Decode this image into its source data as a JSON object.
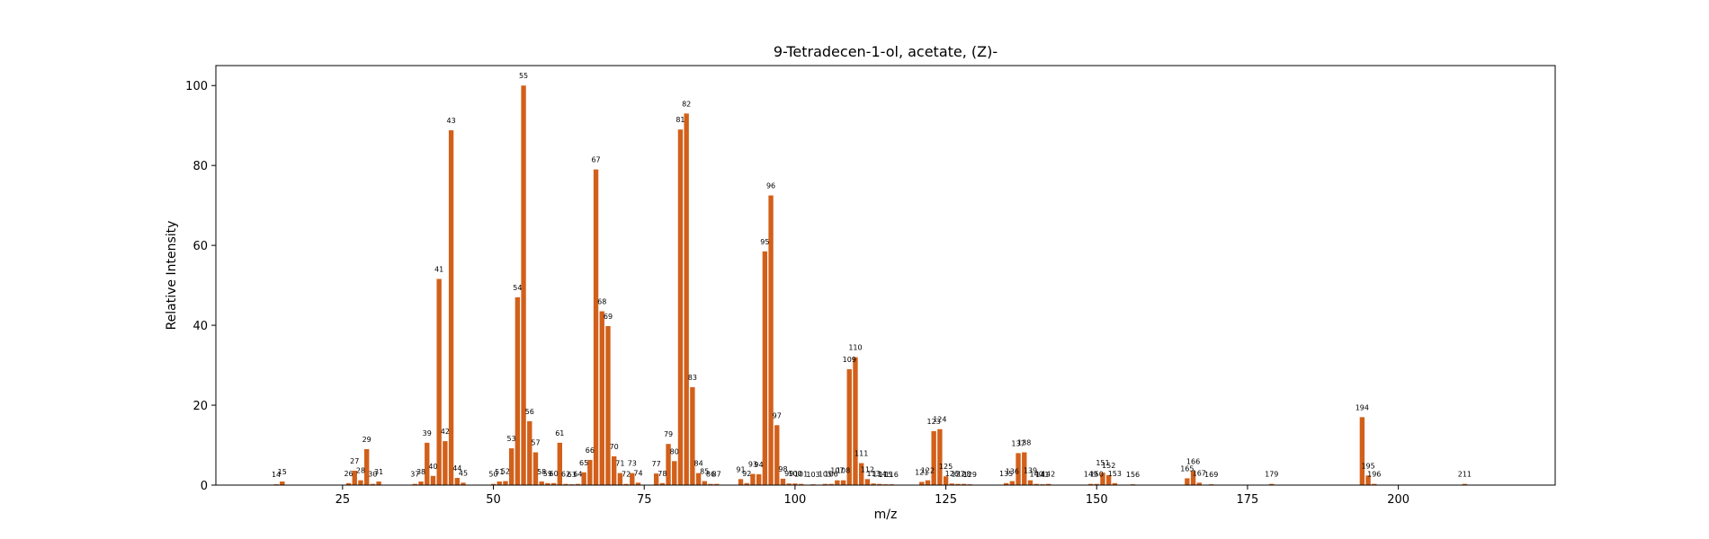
{
  "chart_data": {
    "type": "bar",
    "title": "9-Tetradecen-1-ol, acetate, (Z)-",
    "xlabel": "m/z",
    "ylabel": "Relative Intensity",
    "xlim": [
      4,
      226
    ],
    "ylim": [
      0,
      105
    ],
    "xticks": [
      25,
      50,
      75,
      100,
      125,
      150,
      175,
      200
    ],
    "yticks": [
      0,
      20,
      40,
      60,
      80,
      100
    ],
    "grid": false,
    "bar_color": "#d2601a",
    "series": [
      {
        "x": [
          14,
          15,
          26,
          27,
          28,
          29,
          30,
          31,
          37,
          38,
          39,
          40,
          41,
          42,
          43,
          44,
          45,
          50,
          51,
          52,
          53,
          54,
          55,
          56,
          57,
          58,
          59,
          60,
          61,
          62,
          63,
          64,
          65,
          66,
          67,
          68,
          69,
          70,
          71,
          72,
          73,
          74,
          77,
          78,
          79,
          80,
          81,
          82,
          83,
          84,
          85,
          86,
          87,
          91,
          92,
          93,
          94,
          95,
          96,
          97,
          98,
          99,
          100,
          101,
          103,
          105,
          106,
          107,
          108,
          109,
          110,
          111,
          112,
          113,
          114,
          115,
          116,
          121,
          122,
          123,
          124,
          125,
          126,
          127,
          128,
          129,
          135,
          136,
          137,
          138,
          139,
          140,
          141,
          142,
          149,
          150,
          151,
          152,
          153,
          156,
          165,
          166,
          167,
          169,
          179,
          194,
          195,
          196,
          211
        ],
        "values": [
          0.2,
          0.9,
          0.5,
          3.6,
          1.2,
          9.0,
          0.3,
          0.9,
          0.3,
          0.9,
          10.6,
          2.3,
          51.6,
          11.0,
          88.8,
          1.8,
          0.6,
          0.3,
          0.9,
          1.0,
          9.2,
          47.0,
          100.0,
          16.0,
          8.2,
          0.9,
          0.5,
          0.5,
          10.6,
          0.3,
          0.2,
          0.3,
          3.2,
          6.3,
          79.0,
          43.5,
          39.8,
          7.2,
          3.0,
          0.3,
          3.0,
          0.6,
          2.9,
          0.5,
          10.3,
          6.0,
          89.0,
          93.0,
          24.5,
          3.0,
          1.0,
          0.3,
          0.3,
          1.5,
          0.5,
          2.8,
          2.7,
          58.5,
          72.5,
          15.0,
          1.6,
          0.4,
          0.4,
          0.3,
          0.2,
          0.3,
          0.3,
          1.2,
          1.2,
          29.0,
          32.0,
          5.5,
          1.5,
          0.4,
          0.3,
          0.2,
          0.2,
          0.8,
          1.2,
          13.5,
          14.0,
          2.2,
          0.4,
          0.3,
          0.3,
          0.2,
          0.5,
          1.0,
          8.0,
          8.2,
          1.2,
          0.3,
          0.2,
          0.3,
          0.3,
          0.3,
          3.1,
          2.5,
          0.5,
          0.2,
          1.7,
          3.5,
          0.6,
          0.2,
          0.3,
          17.0,
          2.4,
          0.3,
          0.3
        ]
      }
    ]
  }
}
